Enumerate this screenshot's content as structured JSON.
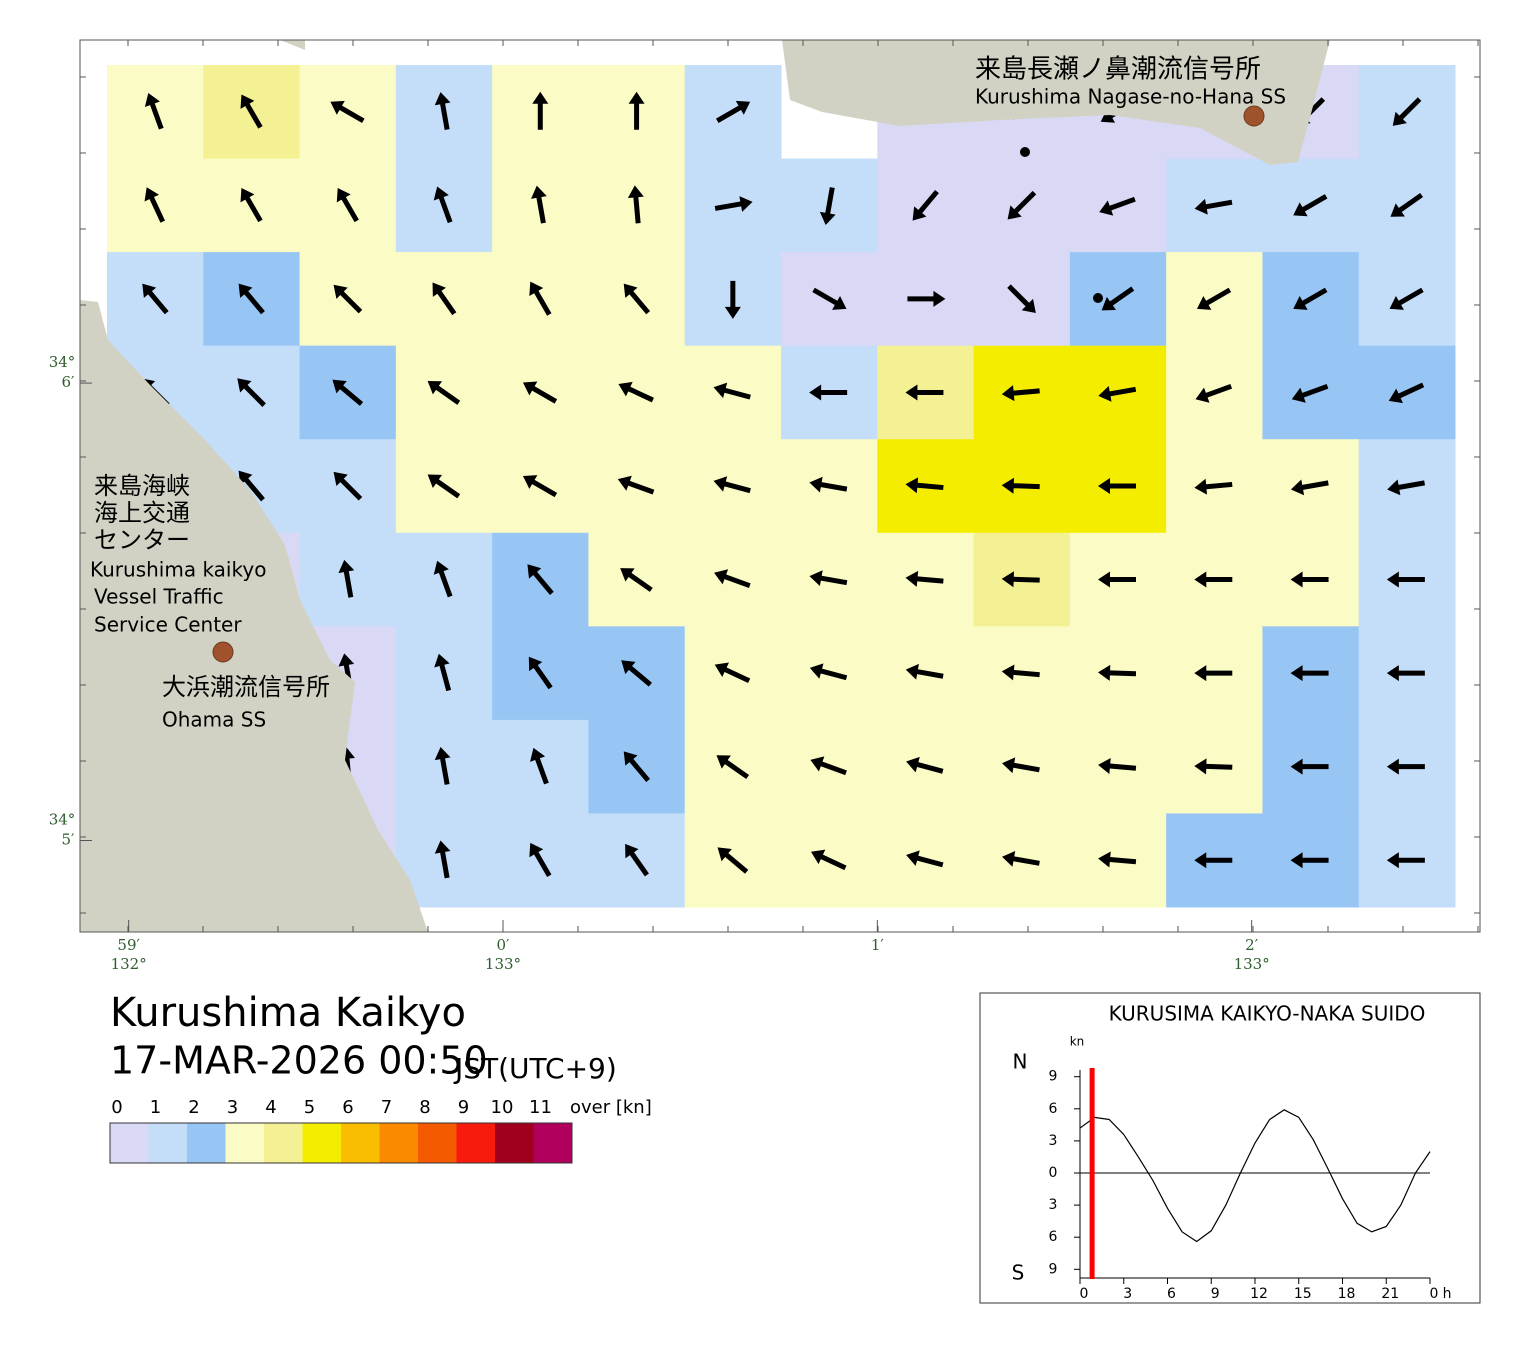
{
  "map": {
    "title": "Kurushima Kaikyo",
    "datetime": "17-MAR-2026 00:50",
    "timezone": "JST(UTC+9)",
    "xlim": [
      58.87,
      62.61
    ],
    "ylim": [
      4.8,
      6.75
    ],
    "xticks": [
      {
        "value": 59,
        "label": "59′",
        "degree": "132°"
      },
      {
        "value": 60,
        "label": "0′",
        "degree": "133°"
      },
      {
        "value": 61,
        "label": "1′"
      },
      {
        "value": 62,
        "label": "2′",
        "degree": "133°"
      }
    ],
    "yticks": [
      {
        "value": 6,
        "label": "6′",
        "degree": "34°"
      },
      {
        "value": 5,
        "label": "5′",
        "degree": "34°"
      }
    ],
    "stations": [
      {
        "name_ja": "来島長瀬ノ鼻潮流信号所",
        "name_en": "Kurushima Nagase-no-Hana SS"
      },
      {
        "name_ja": "大浜潮流信号所",
        "name_en": "Ohama SS"
      }
    ],
    "vts": {
      "name_ja": [
        "来島海峡",
        "海上交通",
        "センター"
      ],
      "name_en": [
        "Kurushima kaikyo",
        "Vessel Traffic",
        "Service Center"
      ]
    },
    "cells": [
      [
        [
          3.8,
          340
        ],
        [
          4.8,
          330
        ],
        [
          3.5,
          300
        ],
        [
          1.8,
          350
        ],
        [
          3.5,
          0
        ],
        [
          3.6,
          0
        ],
        [
          1.5,
          60
        ],
        null,
        [
          0.8,
          270
        ],
        [
          0.8,
          270
        ],
        [
          0.8,
          240
        ],
        [
          0.8,
          225
        ],
        [
          0.7,
          225
        ],
        [
          1.0,
          225
        ]
      ],
      [
        [
          3.5,
          335
        ],
        [
          3.8,
          330
        ],
        [
          3.2,
          330
        ],
        [
          1.8,
          340
        ],
        [
          3.3,
          350
        ],
        [
          3.4,
          355
        ],
        [
          1.8,
          80
        ],
        [
          1.5,
          190
        ],
        [
          0.7,
          220
        ],
        [
          0.6,
          225
        ],
        [
          0.7,
          250
        ],
        [
          1.5,
          260
        ],
        [
          1.7,
          240
        ],
        [
          1.8,
          235
        ]
      ],
      [
        [
          1.5,
          320
        ],
        [
          2.2,
          320
        ],
        [
          3.0,
          315
        ],
        [
          3.2,
          325
        ],
        [
          3.5,
          330
        ],
        [
          3.5,
          320
        ],
        [
          1.5,
          180
        ],
        [
          0.8,
          120
        ],
        [
          0.6,
          90
        ],
        [
          0.5,
          135
        ],
        [
          2.2,
          235
        ],
        [
          3.0,
          240
        ],
        [
          2.3,
          240
        ],
        [
          1.8,
          240
        ]
      ],
      [
        [
          1.0,
          315
        ],
        [
          1.8,
          315
        ],
        [
          2.0,
          310
        ],
        [
          3.0,
          305
        ],
        [
          3.2,
          300
        ],
        [
          3.3,
          295
        ],
        [
          3.2,
          285
        ],
        [
          1.8,
          270
        ],
        [
          4.5,
          270
        ],
        [
          5.2,
          265
        ],
        [
          5.3,
          260
        ],
        [
          3.5,
          250
        ],
        [
          2.8,
          250
        ],
        [
          2.0,
          245
        ]
      ],
      [
        [
          0.8,
          315
        ],
        [
          1.0,
          320
        ],
        [
          1.8,
          315
        ],
        [
          3.0,
          305
        ],
        [
          3.4,
          300
        ],
        [
          3.5,
          290
        ],
        [
          3.5,
          285
        ],
        [
          3.6,
          280
        ],
        [
          5.2,
          275
        ],
        [
          5.5,
          272
        ],
        [
          5.2,
          270
        ],
        [
          3.4,
          265
        ],
        [
          3.0,
          260
        ],
        [
          1.8,
          260
        ]
      ],
      [
        null,
        [
          0.8,
          300
        ],
        [
          1.5,
          350
        ],
        [
          1.8,
          340
        ],
        [
          2.2,
          320
        ],
        [
          3.0,
          305
        ],
        [
          3.4,
          290
        ],
        [
          3.6,
          280
        ],
        [
          3.8,
          275
        ],
        [
          4.5,
          272
        ],
        [
          3.8,
          270
        ],
        [
          3.4,
          270
        ],
        [
          3.0,
          270
        ],
        [
          1.8,
          270
        ]
      ],
      [
        null,
        null,
        [
          0.8,
          350
        ],
        [
          1.8,
          345
        ],
        [
          2.0,
          325
        ],
        [
          2.5,
          310
        ],
        [
          3.2,
          295
        ],
        [
          3.5,
          285
        ],
        [
          3.6,
          280
        ],
        [
          3.6,
          275
        ],
        [
          3.5,
          272
        ],
        [
          3.2,
          270
        ],
        [
          2.6,
          270
        ],
        [
          1.8,
          270
        ]
      ],
      [
        null,
        null,
        [
          0.8,
          355
        ],
        [
          1.9,
          350
        ],
        [
          1.8,
          340
        ],
        [
          2.0,
          320
        ],
        [
          3.3,
          305
        ],
        [
          3.5,
          290
        ],
        [
          3.5,
          285
        ],
        [
          3.4,
          280
        ],
        [
          3.3,
          275
        ],
        [
          3.1,
          272
        ],
        [
          2.5,
          270
        ],
        [
          1.5,
          270
        ]
      ],
      [
        null,
        null,
        [
          0.8,
          0
        ],
        [
          1.9,
          350
        ],
        [
          1.8,
          330
        ],
        [
          1.9,
          325
        ],
        [
          3.2,
          310
        ],
        [
          3.2,
          295
        ],
        [
          3.2,
          285
        ],
        [
          3.1,
          280
        ],
        [
          3.0,
          275
        ],
        [
          2.6,
          270
        ],
        [
          2.0,
          270
        ],
        [
          1.8,
          270
        ]
      ]
    ]
  },
  "legend": {
    "thresholds": [
      0,
      1,
      2,
      3,
      4,
      5,
      6,
      7,
      8,
      9,
      10,
      11
    ],
    "over_label": "over [kn]",
    "colors": [
      "#d9d9f6",
      "#c4ddf9",
      "#97c6f5",
      "#fbfbc5",
      "#f4f194",
      "#f4ed00",
      "#fbbd00",
      "#fb8a00",
      "#f45a00",
      "#f81a0c",
      "#a0001e",
      "#b0005c"
    ]
  },
  "chart_data": {
    "type": "line",
    "title": "KURUSIMA KAIKYO-NAKA SUIDO",
    "unit": "kn",
    "north_label": "N",
    "south_label": "S",
    "x_unit": "h",
    "x": [
      0,
      1,
      2,
      3,
      4,
      5,
      6,
      7,
      8,
      9,
      10,
      11,
      12,
      13,
      14,
      15,
      16,
      17,
      18,
      19,
      20,
      21,
      22,
      23,
      24
    ],
    "values": [
      4.2,
      5.2,
      5.0,
      3.6,
      1.5,
      -0.7,
      -3.3,
      -5.5,
      -6.4,
      -5.4,
      -3.0,
      0.0,
      2.8,
      5.0,
      5.9,
      5.2,
      3.1,
      0.4,
      -2.4,
      -4.7,
      -5.5,
      -5.0,
      -3.0,
      0.0,
      2.0
    ],
    "color": "#000000",
    "xlim": [
      0,
      24
    ],
    "ylim": [
      -10,
      10
    ],
    "xticks": [
      0,
      3,
      6,
      9,
      12,
      15,
      18,
      21,
      {
        "value": 24,
        "label": "0"
      }
    ],
    "yticks": [
      9,
      6,
      3,
      0,
      {
        "value": -3,
        "label": "3"
      },
      {
        "value": -6,
        "label": "6"
      },
      {
        "value": -9,
        "label": "9"
      }
    ],
    "current_time": 0.83,
    "current_color": "#ff0000"
  }
}
